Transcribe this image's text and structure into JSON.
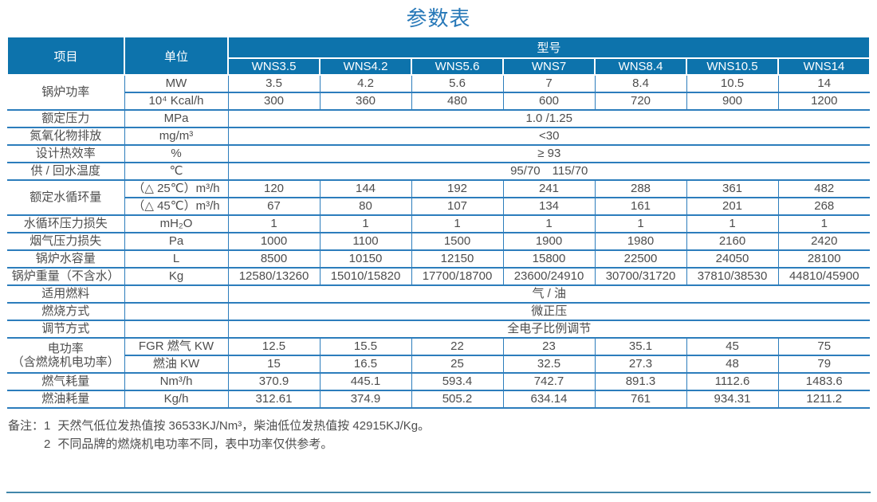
{
  "title": "参数表",
  "colors": {
    "header_bg": "#0d73ac",
    "header_text": "#ffffff",
    "grid": "#2c7dbc",
    "text": "#4d4d4d",
    "title": "#2778b8",
    "bottom_rule": "#4187aa"
  },
  "table": {
    "header": {
      "item": "项目",
      "unit": "单位",
      "model_group": "型号",
      "models": [
        "WNS3.5",
        "WNS4.2",
        "WNS5.6",
        "WNS7",
        "WNS8.4",
        "WNS10.5",
        "WNS14"
      ]
    },
    "rows": [
      {
        "item": "锅炉功率",
        "item_rowspan": 2,
        "unit": "MW",
        "values": [
          "3.5",
          "4.2",
          "5.6",
          "7",
          "8.4",
          "10.5",
          "14"
        ]
      },
      {
        "unit": "10⁴ Kcal/h",
        "values": [
          "300",
          "360",
          "480",
          "600",
          "720",
          "900",
          "1200"
        ]
      },
      {
        "item": "额定压力",
        "unit": "MPa",
        "span": "1.0 /1.25"
      },
      {
        "item": "氮氧化物排放",
        "unit": "mg/m³",
        "span": "<30"
      },
      {
        "item": "设计热效率",
        "unit": "%",
        "span": "≥ 93"
      },
      {
        "item": "供 / 回水温度",
        "unit": "℃",
        "span": "95/70　115/70"
      },
      {
        "item": "额定水循环量",
        "item_rowspan": 2,
        "unit": "（△ 25℃）m³/h",
        "values": [
          "120",
          "144",
          "192",
          "241",
          "288",
          "361",
          "482"
        ]
      },
      {
        "unit": "（△ 45℃）m³/h",
        "values": [
          "67",
          "80",
          "107",
          "134",
          "161",
          "201",
          "268"
        ]
      },
      {
        "item": "水循环压力损失",
        "unit": "mH₂O",
        "values": [
          "1",
          "1",
          "1",
          "1",
          "1",
          "1",
          "1"
        ]
      },
      {
        "item": "烟气压力损失",
        "unit": "Pa",
        "values": [
          "1000",
          "1100",
          "1500",
          "1900",
          "1980",
          "2160",
          "2420"
        ]
      },
      {
        "item": "锅炉水容量",
        "unit": "L",
        "values": [
          "8500",
          "10150",
          "12150",
          "15800",
          "22500",
          "24050",
          "28100"
        ]
      },
      {
        "item": "锅炉重量（不含水）",
        "unit": "Kg",
        "values": [
          "12580/13260",
          "15010/15820",
          "17700/18700",
          "23600/24910",
          "30700/31720",
          "37810/38530",
          "44810/45900"
        ]
      },
      {
        "item": "适用燃料",
        "unit": "",
        "span": "气 / 油"
      },
      {
        "item": "燃烧方式",
        "unit": "",
        "span": "微正压"
      },
      {
        "item": "调节方式",
        "unit": "",
        "span": "全电子比例调节"
      },
      {
        "item": "电功率\n（含燃烧机电功率）",
        "item_rowspan": 2,
        "unit": "FGR 燃气 KW",
        "values": [
          "12.5",
          "15.5",
          "22",
          "23",
          "35.1",
          "45",
          "75"
        ]
      },
      {
        "unit": "燃油 KW",
        "values": [
          "15",
          "16.5",
          "25",
          "32.5",
          "27.3",
          "48",
          "79"
        ]
      },
      {
        "item": "燃气耗量",
        "unit": "Nm³/h",
        "values": [
          "370.9",
          "445.1",
          "593.4",
          "742.7",
          "891.3",
          "1112.6",
          "1483.6"
        ]
      },
      {
        "item": "燃油耗量",
        "unit": "Kg/h",
        "values": [
          "312.61",
          "374.9",
          "505.2",
          "634.14",
          "761",
          "934.31",
          "1211.2"
        ]
      }
    ]
  },
  "notes": {
    "prefix": "备注：",
    "items": [
      {
        "num": "1",
        "text": "天然气低位发热值按 36533KJ/Nm³，柴油低位发热值按 42915KJ/Kg。"
      },
      {
        "num": "2",
        "text": "不同品牌的燃烧机电功率不同，表中功率仅供参考。"
      }
    ]
  }
}
